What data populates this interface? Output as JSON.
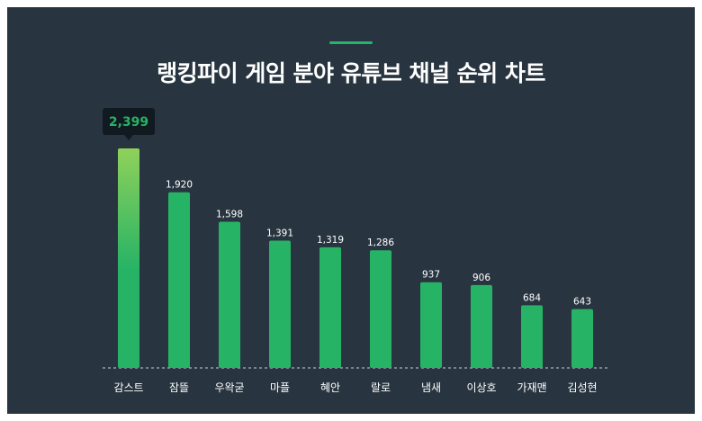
{
  "title": "랭킹파이 게임 분야 유튜브 채널 순위 차트",
  "colors": {
    "background": "#283540",
    "bar": "#27b366",
    "bar_top_highlight": "#8fd15a",
    "accent": "#22b56b",
    "callout_bg": "#111a20",
    "callout_text": "#27b366"
  },
  "chart_data": {
    "type": "bar",
    "categories": [
      "감스트",
      "잠뜰",
      "우왁굳",
      "마플",
      "혜안",
      "랄로",
      "냄새",
      "이상호",
      "가재맨",
      "김성현"
    ],
    "values": [
      2399,
      1920,
      1598,
      1391,
      1319,
      1286,
      937,
      906,
      684,
      643
    ],
    "data_labels": [
      "2,399",
      "1,920",
      "1,598",
      "1,391",
      "1,319",
      "1,286",
      "937",
      "906",
      "684",
      "643"
    ],
    "highlight_index": 0,
    "title": "랭킹파이 게임 분야 유튜브 채널 순위 차트",
    "xlabel": "",
    "ylabel": "",
    "ylim": [
      0,
      2399
    ],
    "grid": false,
    "legend": "none"
  }
}
